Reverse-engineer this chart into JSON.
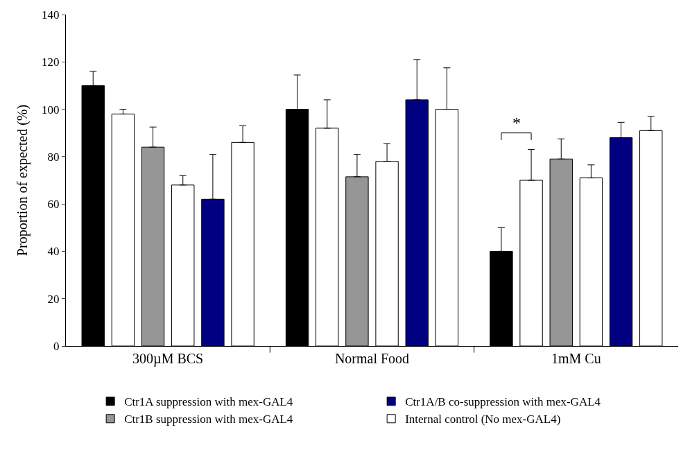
{
  "chart_data": {
    "type": "bar",
    "ylabel": "Proportion of expected (%)",
    "categories": [
      "300µM BCS",
      "Normal Food",
      "1mM Cu"
    ],
    "series": [
      {
        "name": "Ctr1A suppression with mex-GAL4",
        "color": "#000000",
        "values": [
          110,
          100,
          40
        ],
        "errors": [
          [
            110,
            116
          ],
          [
            100,
            114.5
          ],
          [
            40,
            50
          ]
        ]
      },
      {
        "name": "Internal control (No mex-GAL4)",
        "color": "#ffffff",
        "values": [
          98,
          92,
          70
        ],
        "errors": [
          [
            98,
            100
          ],
          [
            92,
            104
          ],
          [
            70,
            83
          ]
        ]
      },
      {
        "name": "Ctr1B suppression with mex-GAL4",
        "color": "#969696",
        "values": [
          84,
          71.5,
          79
        ],
        "errors": [
          [
            84,
            92.5
          ],
          [
            71.5,
            81
          ],
          [
            79,
            87.5
          ]
        ]
      },
      {
        "color": "#ffffff",
        "values": [
          68,
          78,
          71
        ],
        "errors": [
          [
            68,
            72
          ],
          [
            78,
            85.5
          ],
          [
            71,
            76.5
          ]
        ]
      },
      {
        "name": "Ctr1A/B co-suppression with mex-GAL4",
        "color": "#000080",
        "values": [
          62,
          104,
          88
        ],
        "errors": [
          [
            62,
            81
          ],
          [
            104,
            121
          ],
          [
            88,
            94.5
          ]
        ]
      },
      {
        "color": "#ffffff",
        "values": [
          86,
          100,
          91
        ],
        "errors": [
          [
            86,
            93
          ],
          [
            100,
            117.5
          ],
          [
            91,
            97
          ]
        ]
      }
    ],
    "ylim": [
      0,
      140
    ],
    "yticks": [
      0,
      20,
      40,
      60,
      80,
      100,
      120,
      140
    ],
    "annotations": [
      "*"
    ],
    "legend": "bottom"
  }
}
